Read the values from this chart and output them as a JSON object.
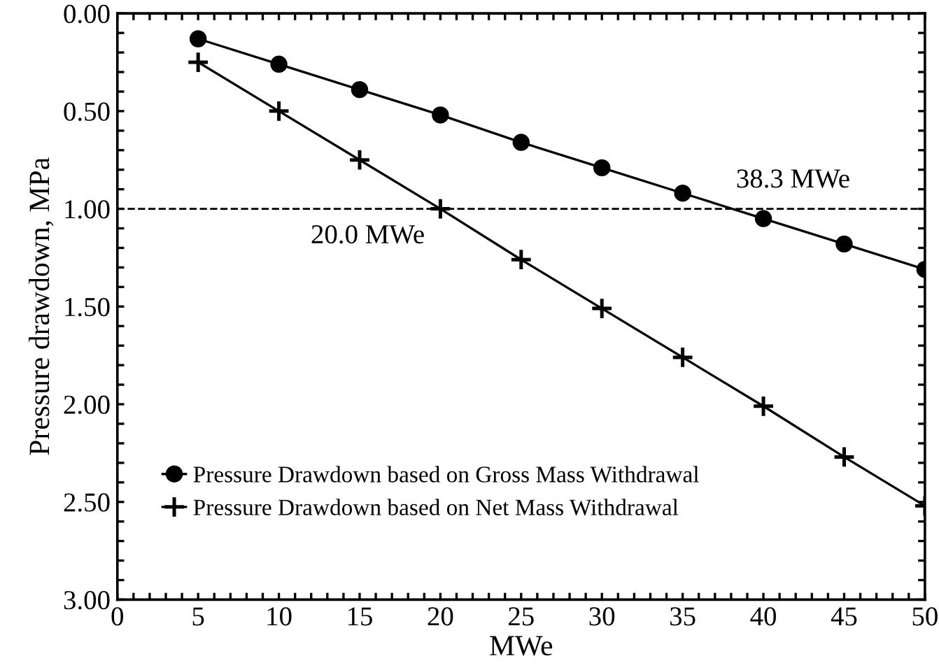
{
  "chart_data": {
    "type": "line",
    "xlabel": "MWe",
    "ylabel": "Pressure drawdown, MPa",
    "x": [
      5,
      10,
      15,
      20,
      25,
      30,
      35,
      40,
      45,
      50
    ],
    "series": [
      {
        "name": "Pressure Drawdown based on Gross Mass Withdrawal",
        "color": "#000000",
        "marker": "circle",
        "values": [
          0.13,
          0.26,
          0.39,
          0.52,
          0.66,
          0.79,
          0.92,
          1.05,
          1.18,
          1.31
        ]
      },
      {
        "name": "Pressure Drawdown based on Net Mass Withdrawal",
        "color": "#000000",
        "marker": "plus",
        "values": [
          0.25,
          0.5,
          0.75,
          1.0,
          1.26,
          1.51,
          1.76,
          2.01,
          2.27,
          2.52
        ]
      }
    ],
    "xlim": [
      0,
      50
    ],
    "ylim": [
      3.0,
      0.0
    ],
    "xticks": [
      0,
      {
        "value": 1,
        "label": null
      },
      {
        "value": 2,
        "label": null
      },
      {
        "value": 3,
        "label": null
      },
      {
        "value": 4,
        "label": null
      },
      5,
      {
        "value": 6,
        "label": null
      },
      {
        "value": 7,
        "label": null
      },
      {
        "value": 8,
        "label": null
      },
      {
        "value": 9,
        "label": null
      },
      10,
      {
        "value": 11,
        "label": null
      },
      {
        "value": 12,
        "label": null
      },
      {
        "value": 13,
        "label": null
      },
      {
        "value": 14,
        "label": null
      },
      15,
      {
        "value": 16,
        "label": null
      },
      {
        "value": 17,
        "label": null
      },
      {
        "value": 18,
        "label": null
      },
      {
        "value": 19,
        "label": null
      },
      20,
      {
        "value": 21,
        "label": null
      },
      {
        "value": 22,
        "label": null
      },
      {
        "value": 23,
        "label": null
      },
      {
        "value": 24,
        "label": null
      },
      25,
      {
        "value": 26,
        "label": null
      },
      {
        "value": 27,
        "label": null
      },
      {
        "value": 28,
        "label": null
      },
      {
        "value": 29,
        "label": null
      },
      30,
      {
        "value": 31,
        "label": null
      },
      {
        "value": 32,
        "label": null
      },
      {
        "value": 33,
        "label": null
      },
      {
        "value": 34,
        "label": null
      },
      35,
      {
        "value": 36,
        "label": null
      },
      {
        "value": 37,
        "label": null
      },
      {
        "value": 38,
        "label": null
      },
      {
        "value": 39,
        "label": null
      },
      40,
      {
        "value": 41,
        "label": null
      },
      {
        "value": 42,
        "label": null
      },
      {
        "value": 43,
        "label": null
      },
      {
        "value": 44,
        "label": null
      },
      45,
      {
        "value": 46,
        "label": null
      },
      {
        "value": 47,
        "label": null
      },
      {
        "value": 48,
        "label": null
      },
      {
        "value": 49,
        "label": null
      },
      50
    ],
    "yticks": [
      {
        "value": 0.0,
        "label": "0.00"
      },
      {
        "value": 0.1,
        "label": null
      },
      {
        "value": 0.2,
        "label": null
      },
      {
        "value": 0.3,
        "label": null
      },
      {
        "value": 0.4,
        "label": null
      },
      {
        "value": 0.5,
        "label": "0.50"
      },
      {
        "value": 0.6,
        "label": null
      },
      {
        "value": 0.7,
        "label": null
      },
      {
        "value": 0.8,
        "label": null
      },
      {
        "value": 0.9,
        "label": null
      },
      {
        "value": 1.0,
        "label": "1.00"
      },
      {
        "value": 1.1,
        "label": null
      },
      {
        "value": 1.2,
        "label": null
      },
      {
        "value": 1.3,
        "label": null
      },
      {
        "value": 1.4,
        "label": null
      },
      {
        "value": 1.5,
        "label": "1.50"
      },
      {
        "value": 1.6,
        "label": null
      },
      {
        "value": 1.7,
        "label": null
      },
      {
        "value": 1.8,
        "label": null
      },
      {
        "value": 1.9,
        "label": null
      },
      {
        "value": 2.0,
        "label": "2.00"
      },
      {
        "value": 2.1,
        "label": null
      },
      {
        "value": 2.2,
        "label": null
      },
      {
        "value": 2.3,
        "label": null
      },
      {
        "value": 2.4,
        "label": null
      },
      {
        "value": 2.5,
        "label": "2.50"
      },
      {
        "value": 2.6,
        "label": null
      },
      {
        "value": 2.7,
        "label": null
      },
      {
        "value": 2.8,
        "label": null
      },
      {
        "value": 2.9,
        "label": null
      },
      {
        "value": 3.0,
        "label": "3.00"
      }
    ],
    "ref_lines": [
      {
        "axis": "y",
        "value": 1.0,
        "line_style": "dashed",
        "color": "#000000"
      }
    ],
    "annotations": [
      {
        "text": "38.3 MWe",
        "x": 38.3,
        "y": 1.0
      },
      {
        "text": "20.0 MWe",
        "x": 20.0,
        "y": 1.0
      }
    ],
    "legend": "bottom left",
    "grid": false,
    "line_style": "solid"
  }
}
